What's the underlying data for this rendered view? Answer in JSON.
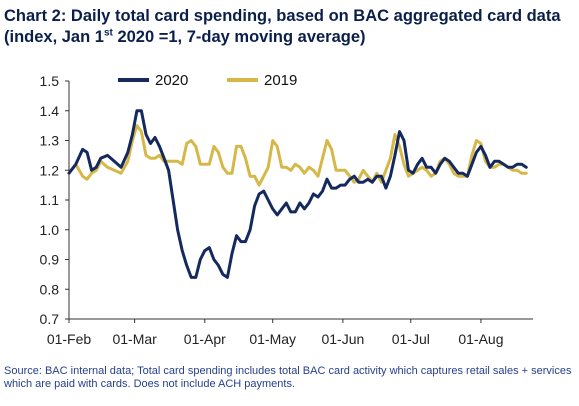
{
  "title": {
    "line1": "Chart 2: Daily total card spending, based on BAC aggregated card data",
    "line2_pre": "(index, Jan 1",
    "line2_sup": "st",
    "line2_post": " 2020 =1, 7-day moving average)"
  },
  "source": "Source: BAC internal data; Total card spending includes total BAC card activity which captures retail sales + services which are paid with cards. Does not include ACH payments.",
  "colors": {
    "series_2020": "#14295e",
    "series_2019": "#d6b848",
    "text": "#0b1f4b",
    "source": "#27408b"
  },
  "chart_data": {
    "type": "line",
    "title": "Daily total card spending, based on BAC aggregated card data",
    "xlabel": "",
    "ylabel": "",
    "ylim": [
      0.7,
      1.5
    ],
    "yticks": [
      0.7,
      0.8,
      0.9,
      1.0,
      1.1,
      1.2,
      1.3,
      1.4,
      1.5
    ],
    "ytick_labels": [
      "0.7",
      "0.8",
      "0.9",
      "1.0",
      "1.1",
      "1.2",
      "1.3",
      "1.4",
      "1.5"
    ],
    "xlim": [
      0,
      205
    ],
    "xticks": [
      {
        "day": 0,
        "label": "01-Feb"
      },
      {
        "day": 29,
        "label": "01-Mar"
      },
      {
        "day": 60,
        "label": "01-Apr"
      },
      {
        "day": 90,
        "label": "01-May"
      },
      {
        "day": 121,
        "label": "01-Jun"
      },
      {
        "day": 151,
        "label": "01-Jul"
      },
      {
        "day": 182,
        "label": "01-Aug"
      }
    ],
    "grid": false,
    "legend_position": "top-center",
    "series": [
      {
        "name": "2020",
        "x": [
          0,
          3,
          6,
          8,
          10,
          12,
          14,
          17,
          20,
          23,
          26,
          28,
          30,
          32,
          34,
          36,
          38,
          40,
          42,
          44,
          46,
          48,
          50,
          52,
          54,
          56,
          58,
          60,
          62,
          64,
          66,
          68,
          70,
          72,
          74,
          76,
          78,
          80,
          82,
          84,
          86,
          88,
          90,
          92,
          94,
          96,
          98,
          100,
          102,
          104,
          106,
          108,
          110,
          112,
          114,
          116,
          118,
          120,
          122,
          124,
          126,
          128,
          130,
          132,
          134,
          136,
          138,
          140,
          142,
          144,
          146,
          148,
          150,
          152,
          154,
          156,
          158,
          160,
          162,
          164,
          166,
          168,
          170,
          172,
          174,
          176,
          178,
          180,
          182,
          184,
          186,
          188,
          190,
          192,
          194,
          196,
          198,
          200,
          202
        ],
        "values": [
          1.19,
          1.22,
          1.27,
          1.26,
          1.2,
          1.21,
          1.24,
          1.25,
          1.23,
          1.21,
          1.26,
          1.32,
          1.4,
          1.4,
          1.32,
          1.29,
          1.31,
          1.28,
          1.24,
          1.2,
          1.1,
          1.0,
          0.93,
          0.88,
          0.84,
          0.84,
          0.9,
          0.93,
          0.94,
          0.9,
          0.88,
          0.85,
          0.84,
          0.92,
          0.98,
          0.96,
          0.96,
          1.0,
          1.08,
          1.12,
          1.13,
          1.1,
          1.07,
          1.05,
          1.07,
          1.09,
          1.06,
          1.06,
          1.09,
          1.07,
          1.09,
          1.12,
          1.11,
          1.13,
          1.17,
          1.14,
          1.14,
          1.15,
          1.15,
          1.17,
          1.18,
          1.16,
          1.16,
          1.17,
          1.16,
          1.18,
          1.18,
          1.14,
          1.18,
          1.25,
          1.33,
          1.3,
          1.2,
          1.19,
          1.22,
          1.24,
          1.21,
          1.21,
          1.19,
          1.22,
          1.24,
          1.23,
          1.21,
          1.19,
          1.19,
          1.18,
          1.22,
          1.26,
          1.28,
          1.25,
          1.21,
          1.23,
          1.23,
          1.22,
          1.21,
          1.21,
          1.22,
          1.22,
          1.21
        ]
      },
      {
        "name": "2019",
        "x": [
          0,
          3,
          6,
          8,
          10,
          12,
          14,
          17,
          20,
          23,
          26,
          28,
          30,
          32,
          34,
          36,
          38,
          40,
          42,
          44,
          46,
          48,
          50,
          52,
          54,
          56,
          58,
          60,
          62,
          64,
          66,
          68,
          70,
          72,
          74,
          76,
          78,
          80,
          82,
          84,
          86,
          88,
          90,
          92,
          94,
          96,
          98,
          100,
          102,
          104,
          106,
          108,
          110,
          112,
          114,
          116,
          118,
          120,
          122,
          124,
          126,
          128,
          130,
          132,
          134,
          136,
          138,
          140,
          142,
          144,
          146,
          148,
          150,
          152,
          154,
          156,
          158,
          160,
          162,
          164,
          166,
          168,
          170,
          172,
          174,
          176,
          178,
          180,
          182,
          184,
          186,
          188,
          190,
          192,
          194,
          196,
          198,
          200,
          202
        ],
        "values": [
          1.19,
          1.22,
          1.18,
          1.17,
          1.19,
          1.2,
          1.23,
          1.21,
          1.2,
          1.19,
          1.23,
          1.3,
          1.35,
          1.33,
          1.25,
          1.24,
          1.24,
          1.25,
          1.23,
          1.23,
          1.23,
          1.23,
          1.22,
          1.29,
          1.3,
          1.28,
          1.22,
          1.22,
          1.22,
          1.28,
          1.26,
          1.21,
          1.19,
          1.19,
          1.28,
          1.28,
          1.24,
          1.18,
          1.18,
          1.15,
          1.18,
          1.21,
          1.3,
          1.28,
          1.21,
          1.21,
          1.2,
          1.22,
          1.21,
          1.19,
          1.21,
          1.2,
          1.18,
          1.24,
          1.3,
          1.27,
          1.2,
          1.2,
          1.2,
          1.18,
          1.16,
          1.17,
          1.2,
          1.18,
          1.16,
          1.19,
          1.16,
          1.2,
          1.24,
          1.32,
          1.28,
          1.22,
          1.18,
          1.19,
          1.2,
          1.21,
          1.2,
          1.18,
          1.19,
          1.23,
          1.24,
          1.22,
          1.19,
          1.18,
          1.18,
          1.18,
          1.25,
          1.3,
          1.29,
          1.23,
          1.21,
          1.21,
          1.22,
          1.22,
          1.21,
          1.2,
          1.2,
          1.19,
          1.19
        ]
      }
    ]
  }
}
